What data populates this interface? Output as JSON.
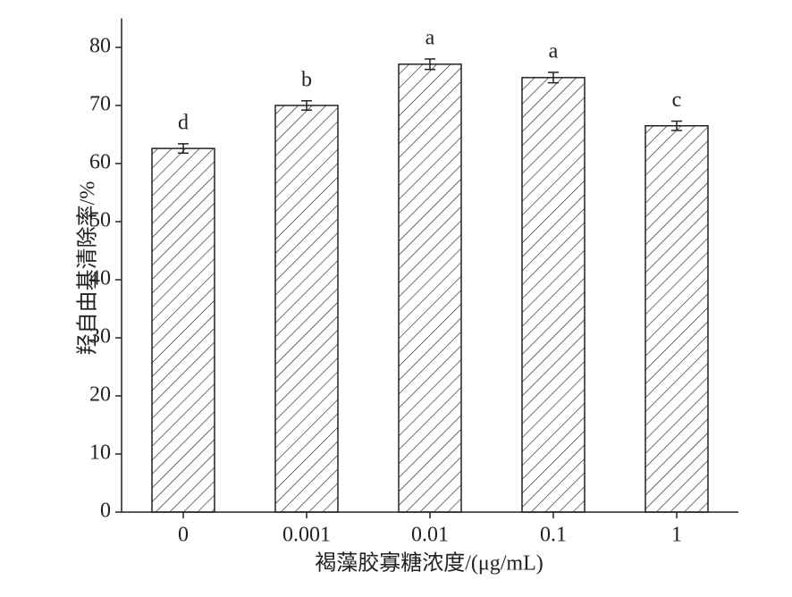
{
  "chart_data": {
    "type": "bar",
    "xlabel": "褐藻胶寡糖浓度/(μg/mL)",
    "ylabel": "羟自由基清除率/%",
    "categories": [
      "0",
      "0.001",
      "0.01",
      "0.1",
      "1"
    ],
    "values": [
      62.6,
      70.0,
      77.1,
      74.8,
      66.5
    ],
    "errors": [
      0.8,
      0.8,
      0.9,
      0.9,
      0.8
    ],
    "significance_labels": [
      "d",
      "b",
      "a",
      "a",
      "c"
    ],
    "color": "#222222",
    "hatch": "diagonal",
    "ylim": [
      0,
      85
    ],
    "yticks": [
      0,
      10,
      20,
      30,
      40,
      50,
      60,
      70,
      80
    ],
    "grid": false
  }
}
